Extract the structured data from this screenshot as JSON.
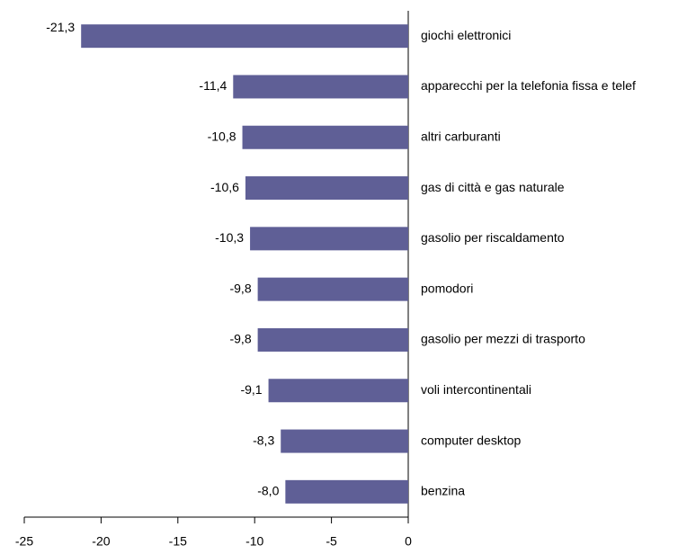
{
  "chart_data": {
    "type": "bar",
    "orientation": "horizontal",
    "categories": [
      "giochi elettronici",
      "apparecchi per la telefonia fissa e telef",
      "altri carburanti",
      "gas di città e gas naturale",
      "gasolio per riscaldamento",
      "pomodori",
      "gasolio per mezzi di trasporto",
      "voli intercontinentali",
      "computer desktop",
      "benzina"
    ],
    "values": [
      -21.3,
      -11.4,
      -10.8,
      -10.6,
      -10.3,
      -9.8,
      -9.8,
      -9.1,
      -8.3,
      -8.0
    ],
    "value_labels": [
      "-21,3",
      "-11,4",
      "-10,8",
      "-10,6",
      "-10,3",
      "-9,8",
      "-9,8",
      "-9,1",
      "-8,3",
      "-8,0"
    ],
    "color": "#5f5f96",
    "xlim": [
      -25,
      0
    ],
    "xticks": [
      -25,
      -20,
      -15,
      -10,
      -5,
      0
    ],
    "grid": false
  }
}
